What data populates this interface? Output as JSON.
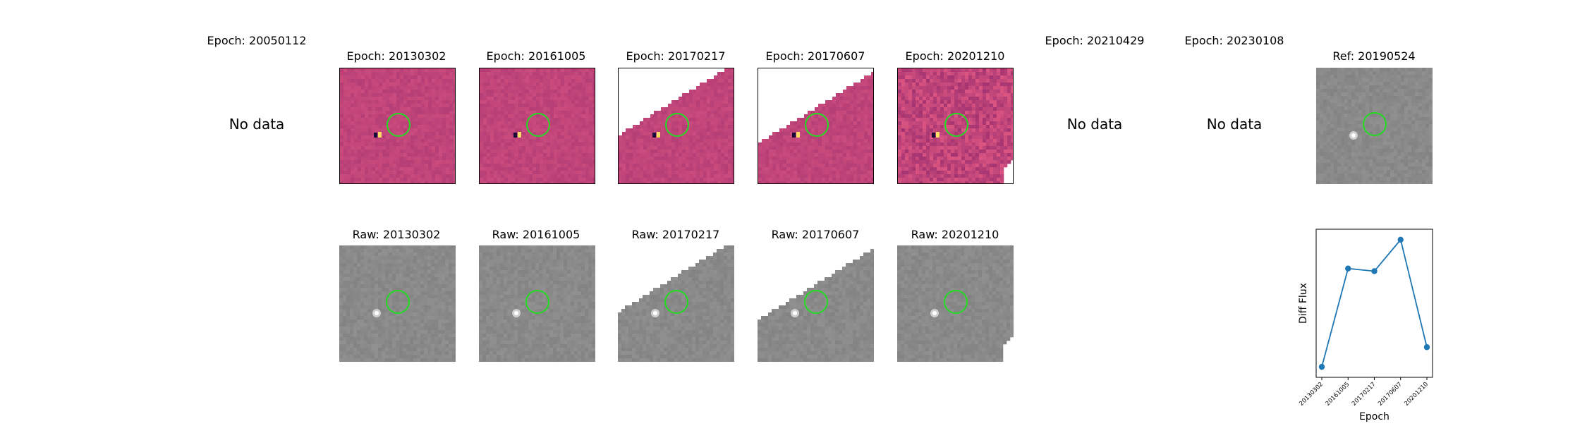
{
  "top_row": [
    {
      "title": "Epoch: 20050112",
      "no_data": "No data"
    },
    {
      "title": "Epoch: 20130302"
    },
    {
      "title": "Epoch: 20161005"
    },
    {
      "title": "Epoch: 20170217"
    },
    {
      "title": "Epoch: 20170607"
    },
    {
      "title": "Epoch: 20201210"
    },
    {
      "title": "Epoch: 20210429",
      "no_data": "No data"
    },
    {
      "title": "Epoch: 20230108",
      "no_data": "No data"
    },
    {
      "title": "Ref: 20190524"
    }
  ],
  "bottom_row": [
    {
      "title": "Raw: 20130302"
    },
    {
      "title": "Raw: 20161005"
    },
    {
      "title": "Raw: 20170217"
    },
    {
      "title": "Raw: 20170607"
    },
    {
      "title": "Raw: 20201210"
    }
  ],
  "colors": {
    "diff_base": "#c0457a",
    "raw_base": "#8a8a8a",
    "circle": "#22dd22",
    "line": "#1f77b4"
  },
  "chart_data": {
    "type": "line",
    "x": [
      "20130302",
      "20161005",
      "20170217",
      "20170607",
      "20201210"
    ],
    "values": [
      0.05,
      0.8,
      0.78,
      1.02,
      0.2
    ],
    "xlabel": "Epoch",
    "ylabel": "Diff Flux",
    "y_tick_labels_shown": false
  }
}
